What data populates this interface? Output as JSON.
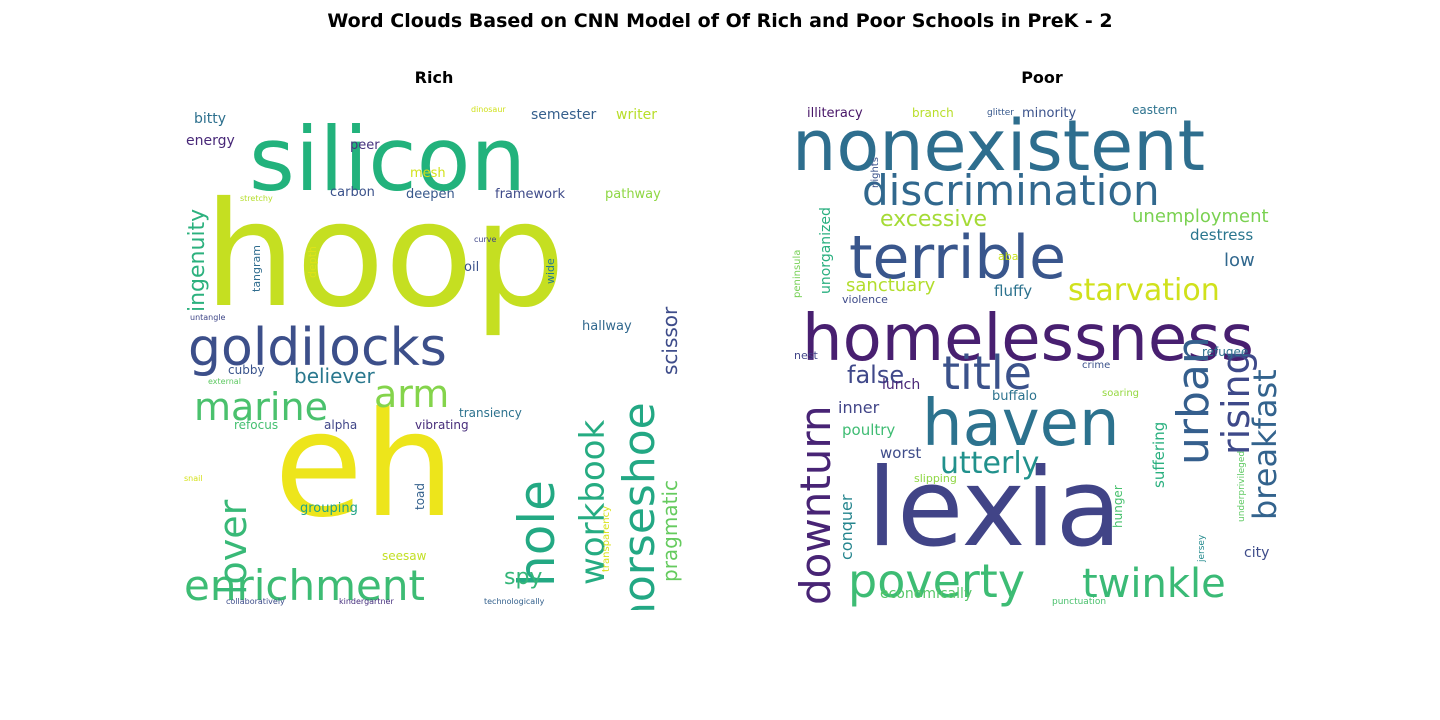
{
  "figure": {
    "title": "Word Clouds Based on CNN Model of Of Rich and Poor Schools in PreK - 2"
  },
  "chart_data": [
    {
      "type": "wordcloud",
      "title": "Rich",
      "words": [
        {
          "text": "hoop",
          "size": 145,
          "color": "#c5df21",
          "rotate": 0
        },
        {
          "text": "eh",
          "size": 145,
          "color": "#ede51b",
          "rotate": 0
        },
        {
          "text": "silicon",
          "size": 88,
          "color": "#22b27c",
          "rotate": 0
        },
        {
          "text": "goldilocks",
          "size": 52,
          "color": "#3c4f8a",
          "rotate": 0
        },
        {
          "text": "enrichment",
          "size": 42,
          "color": "#3dbc74",
          "rotate": 0
        },
        {
          "text": "marine",
          "size": 38,
          "color": "#4ac16d",
          "rotate": 0
        },
        {
          "text": "arm",
          "size": 38,
          "color": "#84d44b",
          "rotate": 0
        },
        {
          "text": "hole",
          "size": 50,
          "color": "#23a983",
          "rotate": -90
        },
        {
          "text": "horseshoe",
          "size": 44,
          "color": "#23a884",
          "rotate": -90
        },
        {
          "text": "workbook",
          "size": 34,
          "color": "#26ac82",
          "rotate": -90
        },
        {
          "text": "lover",
          "size": 38,
          "color": "#38b977",
          "rotate": -90
        },
        {
          "text": "ingenuity",
          "size": 22,
          "color": "#2cb17e",
          "rotate": -90
        },
        {
          "text": "pragmatic",
          "size": 20,
          "color": "#65cb5e",
          "rotate": -90
        },
        {
          "text": "scissor",
          "size": 20,
          "color": "#3e4c8a",
          "rotate": -90
        },
        {
          "text": "believer",
          "size": 20,
          "color": "#2a788e",
          "rotate": 0
        },
        {
          "text": "spy",
          "size": 22,
          "color": "#34b679",
          "rotate": 0
        },
        {
          "text": "semester",
          "size": 14,
          "color": "#355f8d",
          "rotate": 0
        },
        {
          "text": "writer",
          "size": 14,
          "color": "#b8de29",
          "rotate": 0
        },
        {
          "text": "bitty",
          "size": 14,
          "color": "#2d708e",
          "rotate": 0
        },
        {
          "text": "energy",
          "size": 14,
          "color": "#482878",
          "rotate": 0
        },
        {
          "text": "peer",
          "size": 13,
          "color": "#46337e",
          "rotate": 0
        },
        {
          "text": "mesh",
          "size": 13,
          "color": "#d2e21b",
          "rotate": 0
        },
        {
          "text": "carbon",
          "size": 13,
          "color": "#3b528b",
          "rotate": 0
        },
        {
          "text": "deepen",
          "size": 13,
          "color": "#38598c",
          "rotate": 0
        },
        {
          "text": "framework",
          "size": 13,
          "color": "#3e4a89",
          "rotate": 0
        },
        {
          "text": "pathway",
          "size": 13,
          "color": "#8fd744",
          "rotate": 0
        },
        {
          "text": "hallway",
          "size": 13,
          "color": "#31688e",
          "rotate": 0
        },
        {
          "text": "cubby",
          "size": 12,
          "color": "#3a548c",
          "rotate": 0
        },
        {
          "text": "refocus",
          "size": 12,
          "color": "#44bf70",
          "rotate": 0
        },
        {
          "text": "alpha",
          "size": 12,
          "color": "#404688",
          "rotate": 0
        },
        {
          "text": "vibrating",
          "size": 12,
          "color": "#472d7b",
          "rotate": 0
        },
        {
          "text": "transiency",
          "size": 12,
          "color": "#2c728e",
          "rotate": 0
        },
        {
          "text": "grouping",
          "size": 13,
          "color": "#20a386",
          "rotate": 0
        },
        {
          "text": "seesaw",
          "size": 12,
          "color": "#c2df23",
          "rotate": 0
        },
        {
          "text": "oil",
          "size": 13,
          "color": "#3b528b",
          "rotate": 0
        },
        {
          "text": "tangram",
          "size": 11,
          "color": "#2f6c8e",
          "rotate": -90
        },
        {
          "text": "depth",
          "size": 11,
          "color": "#dde318",
          "rotate": -90
        },
        {
          "text": "wide",
          "size": 11,
          "color": "#287c8e",
          "rotate": -90
        },
        {
          "text": "toad",
          "size": 12,
          "color": "#34618d",
          "rotate": -90
        },
        {
          "text": "transparency",
          "size": 10,
          "color": "#d8e219",
          "rotate": -90
        },
        {
          "text": "dinosaur",
          "size": 8,
          "color": "#d0e11c",
          "rotate": 0
        },
        {
          "text": "stretchy",
          "size": 8,
          "color": "#b5de2b",
          "rotate": 0
        },
        {
          "text": "curve",
          "size": 8,
          "color": "#404688",
          "rotate": 0
        },
        {
          "text": "untangle",
          "size": 8,
          "color": "#3f4788",
          "rotate": 0
        },
        {
          "text": "external",
          "size": 8,
          "color": "#5ec962",
          "rotate": 0
        },
        {
          "text": "snail",
          "size": 8,
          "color": "#d5e21a",
          "rotate": 0
        },
        {
          "text": "collaboratively",
          "size": 8,
          "color": "#3d4d8a",
          "rotate": 0
        },
        {
          "text": "kindergartner",
          "size": 8,
          "color": "#46307e",
          "rotate": 0
        },
        {
          "text": "technologically",
          "size": 8,
          "color": "#34618d",
          "rotate": 0
        }
      ]
    },
    {
      "type": "wordcloud",
      "title": "Poor",
      "words": [
        {
          "text": "lexia",
          "size": 108,
          "color": "#414487",
          "rotate": 0
        },
        {
          "text": "nonexistent",
          "size": 70,
          "color": "#2e6e8e",
          "rotate": 0
        },
        {
          "text": "homelessness",
          "size": 64,
          "color": "#481f70",
          "rotate": 0
        },
        {
          "text": "haven",
          "size": 64,
          "color": "#2c728e",
          "rotate": 0
        },
        {
          "text": "terrible",
          "size": 60,
          "color": "#39568c",
          "rotate": 0
        },
        {
          "text": "discrimination",
          "size": 42,
          "color": "#31688e",
          "rotate": 0
        },
        {
          "text": "title",
          "size": 46,
          "color": "#3b528b",
          "rotate": 0
        },
        {
          "text": "poverty",
          "size": 46,
          "color": "#3dbc74",
          "rotate": 0
        },
        {
          "text": "twinkle",
          "size": 40,
          "color": "#3aba76",
          "rotate": 0
        },
        {
          "text": "downturn",
          "size": 42,
          "color": "#482475",
          "rotate": -90
        },
        {
          "text": "urban",
          "size": 44,
          "color": "#355f8d",
          "rotate": -90
        },
        {
          "text": "rising",
          "size": 38,
          "color": "#3e4989",
          "rotate": -90
        },
        {
          "text": "breakfast",
          "size": 32,
          "color": "#33638d",
          "rotate": -90
        },
        {
          "text": "starvation",
          "size": 30,
          "color": "#d0e11c",
          "rotate": 0
        },
        {
          "text": "utterly",
          "size": 30,
          "color": "#21918c",
          "rotate": 0
        },
        {
          "text": "excessive",
          "size": 22,
          "color": "#a5db36",
          "rotate": 0
        },
        {
          "text": "false",
          "size": 24,
          "color": "#3f4889",
          "rotate": 0
        },
        {
          "text": "unemployment",
          "size": 18,
          "color": "#7ad151",
          "rotate": 0
        },
        {
          "text": "sanctuary",
          "size": 18,
          "color": "#b2dd2d",
          "rotate": 0
        },
        {
          "text": "fluffy",
          "size": 15,
          "color": "#2c728e",
          "rotate": 0
        },
        {
          "text": "destress",
          "size": 15,
          "color": "#2a768e",
          "rotate": 0
        },
        {
          "text": "low",
          "size": 18,
          "color": "#31688e",
          "rotate": 0
        },
        {
          "text": "inner",
          "size": 16,
          "color": "#414487",
          "rotate": 0
        },
        {
          "text": "poultry",
          "size": 15,
          "color": "#3fbc73",
          "rotate": 0
        },
        {
          "text": "worst",
          "size": 15,
          "color": "#3e4c8a",
          "rotate": 0
        },
        {
          "text": "lunch",
          "size": 14,
          "color": "#482576",
          "rotate": 0
        },
        {
          "text": "buffalo",
          "size": 13,
          "color": "#2c738e",
          "rotate": 0
        },
        {
          "text": "conquer",
          "size": 16,
          "color": "#25858e",
          "rotate": -90
        },
        {
          "text": "suffering",
          "size": 15,
          "color": "#2ab07f",
          "rotate": -90
        },
        {
          "text": "unorganized",
          "size": 14,
          "color": "#29af7f",
          "rotate": -90
        },
        {
          "text": "hunger",
          "size": 12,
          "color": "#48c16e",
          "rotate": -90
        },
        {
          "text": "illiteracy",
          "size": 13,
          "color": "#481668",
          "rotate": 0
        },
        {
          "text": "branch",
          "size": 12,
          "color": "#b8de29",
          "rotate": 0
        },
        {
          "text": "glitter",
          "size": 9,
          "color": "#38588c",
          "rotate": 0
        },
        {
          "text": "minority",
          "size": 13,
          "color": "#3b528b",
          "rotate": 0
        },
        {
          "text": "eastern",
          "size": 12,
          "color": "#2c728e",
          "rotate": 0
        },
        {
          "text": "aba",
          "size": 11,
          "color": "#c8e020",
          "rotate": 0
        },
        {
          "text": "violence",
          "size": 11,
          "color": "#3e4a89",
          "rotate": 0
        },
        {
          "text": "nest",
          "size": 11,
          "color": "#414487",
          "rotate": 0
        },
        {
          "text": "crime",
          "size": 10,
          "color": "#3b528b",
          "rotate": 0
        },
        {
          "text": "soaring",
          "size": 10,
          "color": "#95d840",
          "rotate": 0
        },
        {
          "text": "refugee",
          "size": 12,
          "color": "#2d708e",
          "rotate": 0
        },
        {
          "text": "city",
          "size": 14,
          "color": "#3e4c8a",
          "rotate": 0
        },
        {
          "text": "slipping",
          "size": 11,
          "color": "#8fd744",
          "rotate": 0
        },
        {
          "text": "economically",
          "size": 14,
          "color": "#56c667",
          "rotate": 0
        },
        {
          "text": "punctuation",
          "size": 9,
          "color": "#4ac16d",
          "rotate": 0
        },
        {
          "text": "peninsula",
          "size": 10,
          "color": "#75d054",
          "rotate": -90
        },
        {
          "text": "nights",
          "size": 10,
          "color": "#3b528b",
          "rotate": -90
        },
        {
          "text": "jersey",
          "size": 9,
          "color": "#238a8d",
          "rotate": -90
        },
        {
          "text": "underprivileged",
          "size": 9,
          "color": "#5ec962",
          "rotate": -90
        }
      ]
    }
  ]
}
